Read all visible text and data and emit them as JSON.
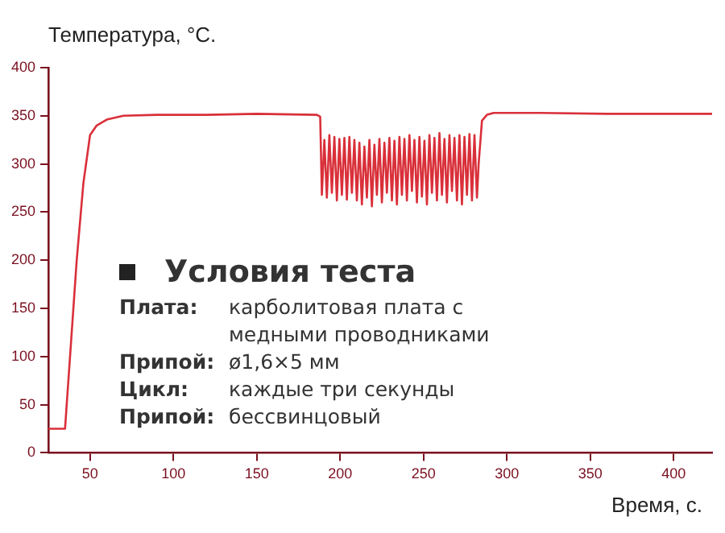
{
  "chart_data": {
    "type": "line",
    "xlabel": "Время, с.",
    "ylabel": "Температура, °C.",
    "x": [
      25,
      35,
      38,
      42,
      46,
      50,
      54,
      60,
      70,
      90,
      120,
      150,
      186,
      188,
      189,
      190.5,
      192,
      193.5,
      195,
      196.5,
      198,
      199.5,
      201,
      202.5,
      204,
      205.5,
      207,
      208.5,
      210,
      211.5,
      213,
      214.5,
      216,
      217.5,
      219,
      220.5,
      222,
      223.5,
      225,
      226.5,
      228,
      229.5,
      231,
      232.5,
      234,
      235.5,
      237,
      238.5,
      240,
      241.5,
      243,
      244.5,
      246,
      247.5,
      249,
      250.5,
      252,
      253.5,
      255,
      256.5,
      258,
      259.5,
      261,
      262.5,
      264,
      265.5,
      267,
      268.5,
      270,
      271.5,
      273,
      274.5,
      276,
      277.5,
      279,
      280.5,
      282,
      283,
      285,
      288,
      292,
      320,
      360,
      400,
      423
    ],
    "series": [
      {
        "color": "#d9303a",
        "values": [
          25,
          25,
          100,
          200,
          280,
          330,
          340,
          346,
          350,
          351,
          351,
          352,
          351,
          349,
          268,
          325,
          265,
          330,
          270,
          328,
          262,
          326,
          268,
          327,
          263,
          328,
          270,
          325,
          262,
          322,
          258,
          318,
          265,
          325,
          256,
          320,
          268,
          326,
          260,
          322,
          270,
          327,
          262,
          324,
          258,
          328,
          268,
          326,
          262,
          330,
          272,
          325,
          260,
          328,
          266,
          324,
          258,
          330,
          270,
          327,
          262,
          332,
          268,
          326,
          260,
          330,
          272,
          327,
          262,
          330,
          258,
          328,
          268,
          331,
          262,
          330,
          265,
          300,
          345,
          351,
          353,
          353,
          352,
          352,
          352
        ]
      }
    ],
    "xlim": [
      25,
      423
    ],
    "xticks": [
      50,
      100,
      150,
      200,
      250,
      300,
      350,
      400
    ],
    "ylim": [
      0,
      400
    ],
    "yticks": [
      0,
      50,
      100,
      150,
      200,
      250,
      300,
      350,
      400
    ],
    "grid": false,
    "legend": false,
    "marker": "none",
    "line_style": "solid",
    "annotations": [
      "Условия теста",
      "Плата: карболитовая плата с медными проводниками",
      "Припой: ø1,6×5 мм",
      "Цикл: каждые три секунды",
      "Припой: бессвинцовый"
    ]
  }
}
